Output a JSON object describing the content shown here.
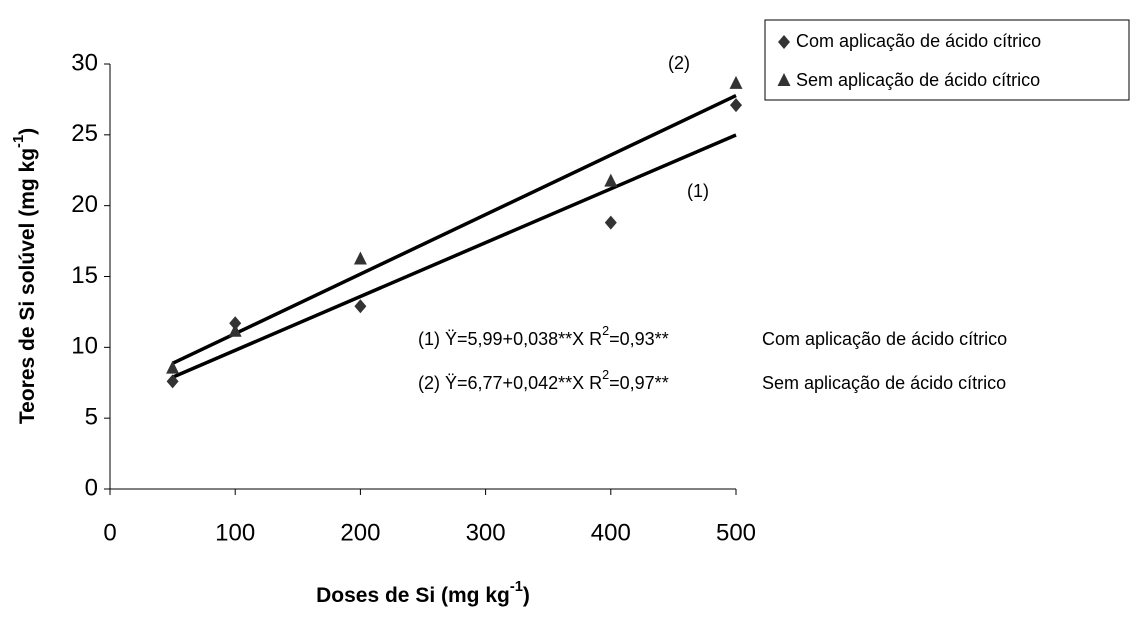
{
  "chart_data": {
    "type": "scatter",
    "x_label": {
      "text": "Doses de Si (mg kg",
      "sup": "-1",
      "end": ")"
    },
    "y_label": {
      "text": "Teores de Si solúvel (mg kg",
      "sup": "-1",
      "end": ")"
    },
    "x": [
      50,
      100,
      200,
      400,
      500
    ],
    "series": [
      {
        "name": "Com aplicação de ácido cítrico",
        "color": "#333333",
        "marker": "diamond",
        "values": [
          7.6,
          11.7,
          12.9,
          18.8,
          27.1
        ],
        "trend": {
          "label": "(1)",
          "intercept": 5.99,
          "slope": 0.038
        },
        "equation": {
          "text": "(1) Ÿ=5,99+0,038**X  R",
          "sup": "2",
          "end": "=0,93**",
          "description": "Com aplicação de ácido cítrico"
        }
      },
      {
        "name": "Sem aplicação de ácido cítrico",
        "color": "#333333",
        "marker": "triangle",
        "values": [
          8.5,
          11.1,
          16.2,
          21.7,
          28.6
        ],
        "trend": {
          "label": "(2)",
          "intercept": 6.77,
          "slope": 0.042
        },
        "equation": {
          "text": "(2) Ÿ=6,77+0,042**X  R",
          "sup": "2",
          "end": "=0,97**",
          "description": "Sem aplicação de ácido cítrico"
        }
      }
    ],
    "xlim": [
      0,
      500
    ],
    "xticks": [
      0,
      100,
      200,
      300,
      400,
      500
    ],
    "ylim": [
      0,
      30
    ],
    "yticks": [
      0,
      5,
      10,
      15,
      20,
      25,
      30
    ],
    "grid": false,
    "legend": "top-right"
  }
}
